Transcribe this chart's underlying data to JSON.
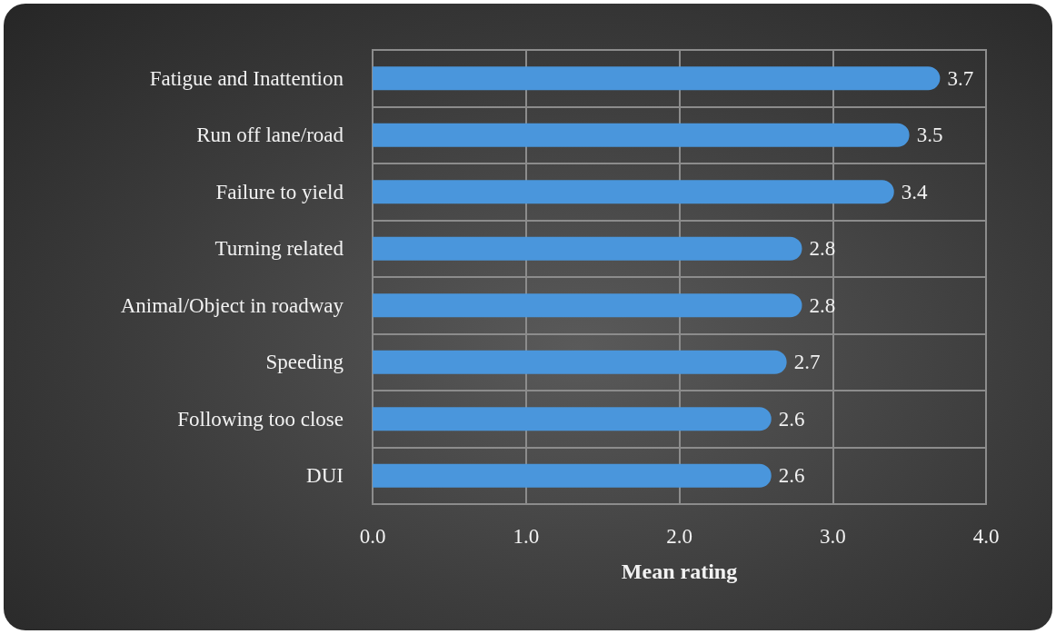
{
  "chart_data": {
    "type": "bar",
    "orientation": "horizontal",
    "categories": [
      "Fatigue and Inattention",
      "Run off lane/road",
      "Failure to yield",
      "Turning related",
      "Animal/Object in roadway",
      "Speeding",
      "Following too close",
      "DUI"
    ],
    "values": [
      3.7,
      3.5,
      3.4,
      2.8,
      2.8,
      2.7,
      2.6,
      2.6
    ],
    "color": "#4a96dc",
    "xlabel": "Mean rating",
    "xlim": [
      0,
      4
    ],
    "xticks": [
      {
        "value": 0,
        "label": "0.0"
      },
      {
        "value": 1,
        "label": "1.0"
      },
      {
        "value": 2,
        "label": "2.0"
      },
      {
        "value": 3,
        "label": "3.0"
      },
      {
        "value": 4,
        "label": "4.0"
      }
    ],
    "grid": true,
    "data_labels": true
  }
}
